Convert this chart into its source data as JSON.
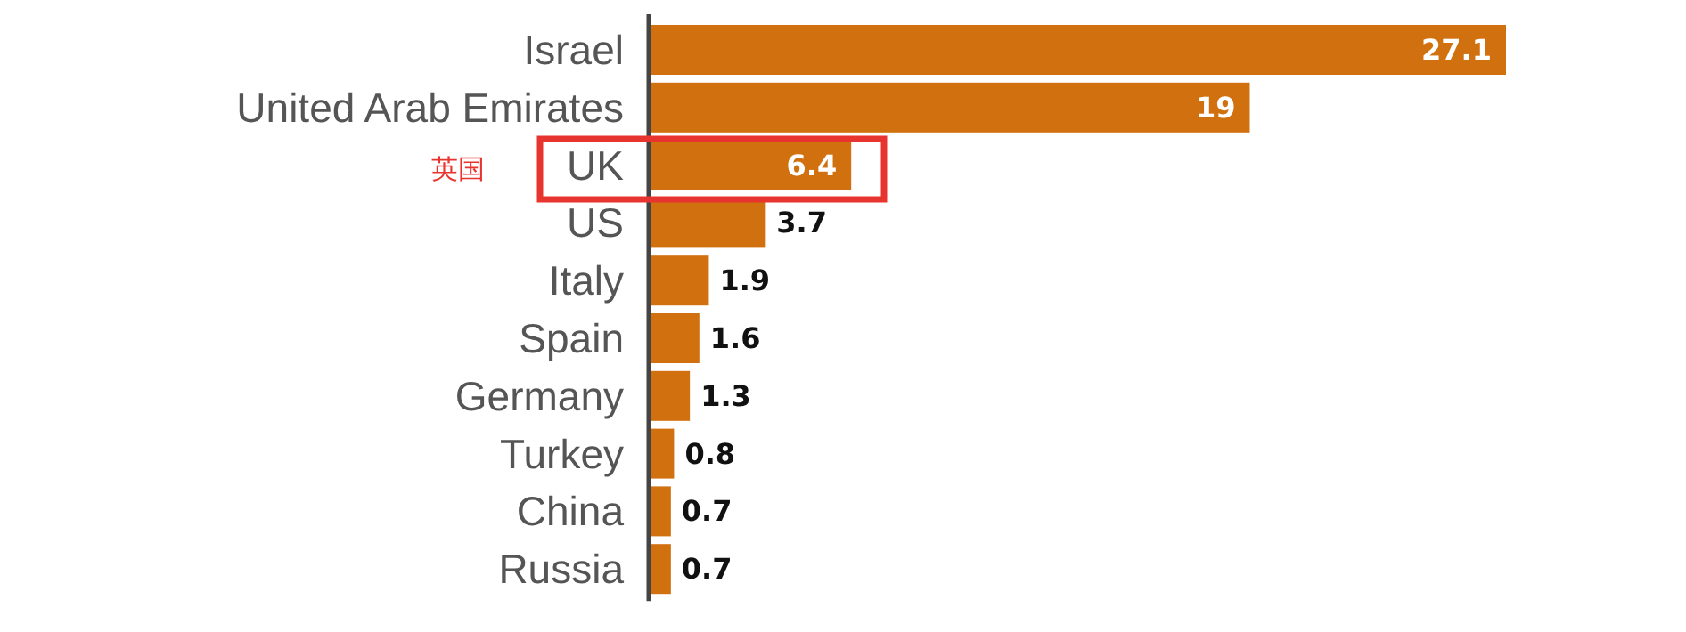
{
  "chart_data": {
    "type": "bar",
    "orientation": "horizontal",
    "data_labels": true,
    "categories": [
      "Israel",
      "United Arab Emirates",
      "UK",
      "US",
      "Italy",
      "Spain",
      "Germany",
      "Turkey",
      "China",
      "Russia"
    ],
    "values": [
      27.1,
      19,
      6.4,
      3.7,
      1.9,
      1.6,
      1.3,
      0.8,
      0.7,
      0.7
    ],
    "color": "#d1700e",
    "annotations": [
      "英国"
    ]
  }
}
